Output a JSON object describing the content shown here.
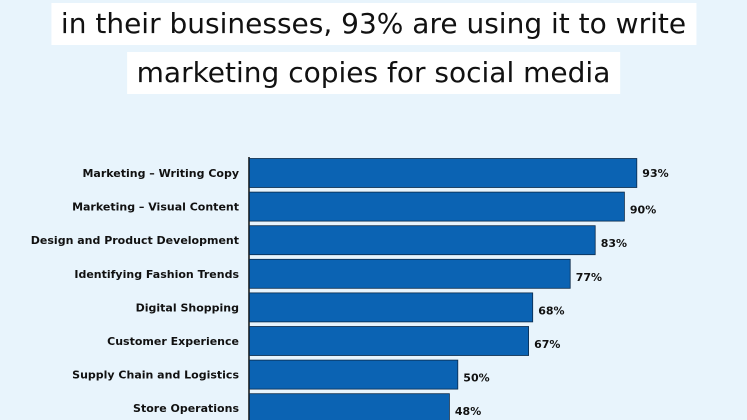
{
  "headline": {
    "line1": "in their businesses, 93% are using it to write",
    "line2": "marketing copies for social media"
  },
  "colors": {
    "background": "#e8f4fc",
    "bar": "#0b63b3",
    "bar_border": "#0a2a4a",
    "axis": "#111111"
  },
  "chart_data": {
    "type": "bar",
    "orientation": "horizontal",
    "categories": [
      "Marketing – Writing Copy",
      "Marketing – Visual Content",
      "Design and Product Development",
      "Identifying Fashion Trends",
      "Digital Shopping",
      "Customer Experience",
      "Supply Chain and Logistics",
      "Store Operations"
    ],
    "values": [
      93,
      90,
      83,
      77,
      68,
      67,
      50,
      48
    ],
    "value_labels": [
      "93%",
      "90%",
      "83%",
      "77%",
      "68%",
      "67%",
      "50%",
      "48%"
    ],
    "xlim": [
      0,
      100
    ],
    "grid": false,
    "legend": "none"
  }
}
